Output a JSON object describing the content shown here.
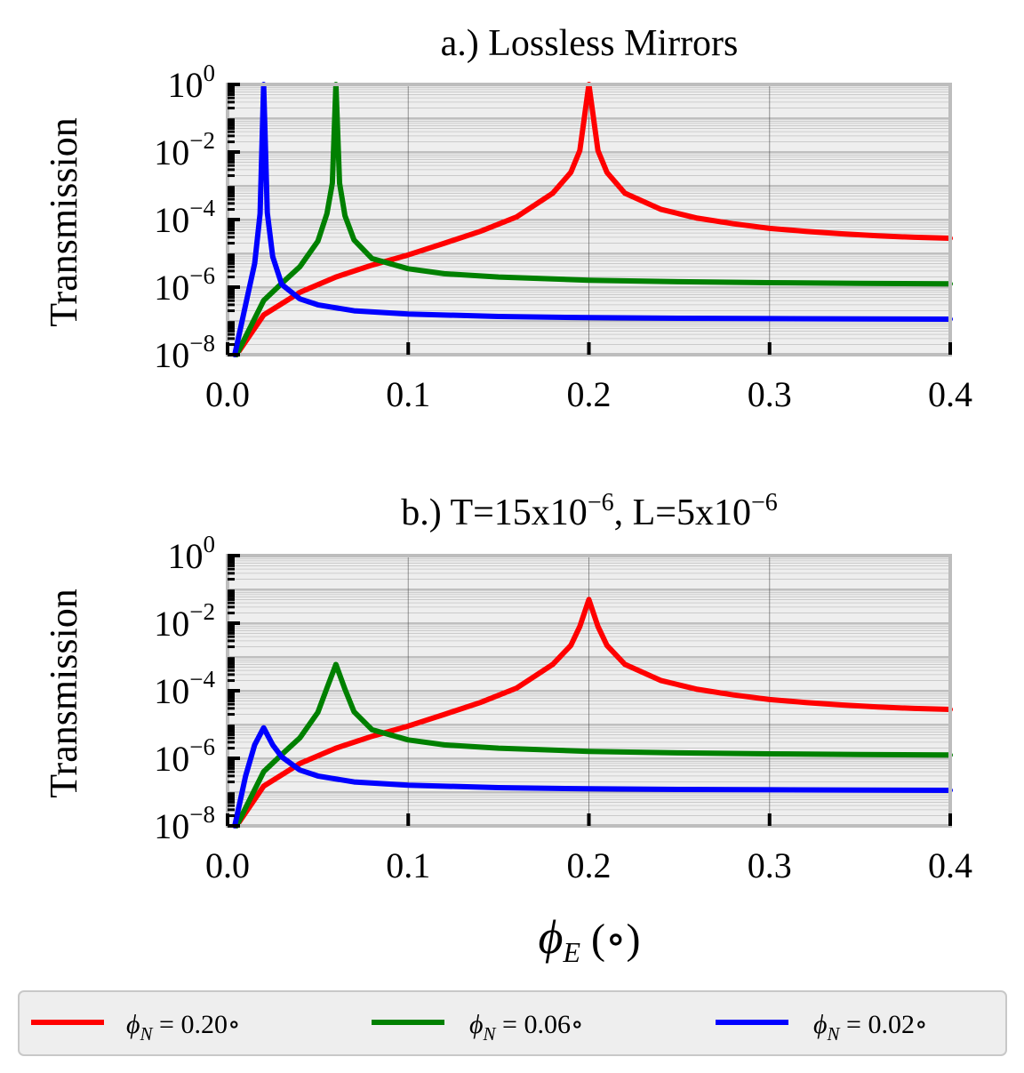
{
  "chart_data": [
    {
      "type": "line",
      "title": "a.) Lossless Mirrors",
      "ylabel": "Transmission",
      "xlabel": "",
      "xlim": [
        0.0,
        0.4
      ],
      "ylim": [
        1e-08,
        1
      ],
      "yscale": "log",
      "xticks": [
        "0.0",
        "0.1",
        "0.2",
        "0.3",
        "0.4"
      ],
      "yticks": [
        {
          "base": "10",
          "exp": "0"
        },
        {
          "base": "10",
          "exp": "−2"
        },
        {
          "base": "10",
          "exp": "−4"
        },
        {
          "base": "10",
          "exp": "−6"
        },
        {
          "base": "10",
          "exp": "−8"
        }
      ],
      "grid": true,
      "series": [
        {
          "name": "ϕN = 0.20°",
          "color": "#ff0000",
          "x": [
            0.005,
            0.02,
            0.04,
            0.06,
            0.08,
            0.1,
            0.12,
            0.14,
            0.16,
            0.18,
            0.19,
            0.195,
            0.2,
            0.205,
            0.21,
            0.22,
            0.24,
            0.26,
            0.28,
            0.3,
            0.32,
            0.34,
            0.36,
            0.38,
            0.4
          ],
          "y": [
            1e-08,
            1.5e-07,
            7e-07,
            2e-06,
            4.5e-06,
            9e-06,
            2e-05,
            4.5e-05,
            0.00012,
            0.0006,
            0.0025,
            0.011,
            1.0,
            0.011,
            0.0025,
            0.0006,
            0.0002,
            0.00011,
            7.5e-05,
            5.5e-05,
            4.5e-05,
            3.8e-05,
            3.3e-05,
            3e-05,
            2.8e-05
          ]
        },
        {
          "name": "ϕN = 0.06°",
          "color": "#008000",
          "x": [
            0.005,
            0.02,
            0.03,
            0.04,
            0.05,
            0.055,
            0.058,
            0.06,
            0.062,
            0.065,
            0.07,
            0.08,
            0.1,
            0.12,
            0.15,
            0.2,
            0.25,
            0.3,
            0.35,
            0.4
          ],
          "y": [
            1e-08,
            4e-07,
            1.3e-06,
            4e-06,
            2.3e-05,
            0.00015,
            0.0012,
            1.0,
            0.0012,
            0.00013,
            2.5e-05,
            7e-06,
            3.5e-06,
            2.5e-06,
            2e-06,
            1.6e-06,
            1.45e-06,
            1.35e-06,
            1.3e-06,
            1.25e-06
          ]
        },
        {
          "name": "ϕN = 0.02°",
          "color": "#0000ff",
          "x": [
            0.004,
            0.01,
            0.015,
            0.018,
            0.02,
            0.022,
            0.025,
            0.03,
            0.04,
            0.05,
            0.07,
            0.1,
            0.15,
            0.2,
            0.25,
            0.3,
            0.35,
            0.4
          ],
          "y": [
            1e-08,
            3e-07,
            5e-06,
            0.00015,
            1.0,
            0.00016,
            8e-06,
            1.2e-06,
            4.5e-07,
            3e-07,
            2e-07,
            1.6e-07,
            1.35e-07,
            1.25e-07,
            1.2e-07,
            1.17e-07,
            1.15e-07,
            1.13e-07
          ]
        }
      ]
    },
    {
      "type": "line",
      "title": "b.) T=15x10−6, L=5x10−6",
      "title_parts": [
        "b.) T=15x10",
        "−6",
        ", L=5x10",
        "−6"
      ],
      "ylabel": "Transmission",
      "xlabel": "ϕE (∘)",
      "xlim": [
        0.0,
        0.4
      ],
      "ylim": [
        1e-08,
        1
      ],
      "yscale": "log",
      "xticks": [
        "0.0",
        "0.1",
        "0.2",
        "0.3",
        "0.4"
      ],
      "yticks": [
        {
          "base": "10",
          "exp": "0"
        },
        {
          "base": "10",
          "exp": "−2"
        },
        {
          "base": "10",
          "exp": "−4"
        },
        {
          "base": "10",
          "exp": "−6"
        },
        {
          "base": "10",
          "exp": "−8"
        }
      ],
      "grid": true,
      "series": [
        {
          "name": "ϕN = 0.20°",
          "color": "#ff0000",
          "x": [
            0.005,
            0.02,
            0.04,
            0.06,
            0.08,
            0.1,
            0.12,
            0.14,
            0.16,
            0.18,
            0.19,
            0.195,
            0.2,
            0.205,
            0.21,
            0.22,
            0.24,
            0.26,
            0.28,
            0.3,
            0.32,
            0.34,
            0.36,
            0.38,
            0.4
          ],
          "y": [
            1e-08,
            1.5e-07,
            7e-07,
            2e-06,
            4.5e-06,
            9e-06,
            2e-05,
            4.5e-05,
            0.00012,
            0.0006,
            0.0022,
            0.008,
            0.05,
            0.008,
            0.0022,
            0.0006,
            0.0002,
            0.00011,
            7.5e-05,
            5.5e-05,
            4.5e-05,
            3.8e-05,
            3.3e-05,
            3e-05,
            2.8e-05
          ]
        },
        {
          "name": "ϕN = 0.06°",
          "color": "#008000",
          "x": [
            0.005,
            0.02,
            0.03,
            0.04,
            0.05,
            0.055,
            0.06,
            0.065,
            0.07,
            0.08,
            0.1,
            0.12,
            0.15,
            0.2,
            0.25,
            0.3,
            0.35,
            0.4
          ],
          "y": [
            1e-08,
            4e-07,
            1.3e-06,
            4e-06,
            2.3e-05,
            0.00012,
            0.0006,
            0.00011,
            2.4e-05,
            7e-06,
            3.5e-06,
            2.5e-06,
            2e-06,
            1.6e-06,
            1.45e-06,
            1.35e-06,
            1.3e-06,
            1.25e-06
          ]
        },
        {
          "name": "ϕN = 0.02°",
          "color": "#0000ff",
          "x": [
            0.004,
            0.01,
            0.015,
            0.02,
            0.025,
            0.03,
            0.04,
            0.05,
            0.07,
            0.1,
            0.15,
            0.2,
            0.25,
            0.3,
            0.35,
            0.4
          ],
          "y": [
            1e-08,
            3e-07,
            2.5e-06,
            8e-06,
            2.5e-06,
            1.1e-06,
            4.5e-07,
            3e-07,
            2e-07,
            1.6e-07,
            1.35e-07,
            1.25e-07,
            1.2e-07,
            1.17e-07,
            1.15e-07,
            1.13e-07
          ]
        }
      ]
    }
  ],
  "legend": {
    "placement": "bottom",
    "items": [
      {
        "symbol": "ϕ",
        "sub": "N",
        "text": " = 0.20∘",
        "color": "#ff0000"
      },
      {
        "symbol": "ϕ",
        "sub": "N",
        "text": " = 0.06∘",
        "color": "#008000"
      },
      {
        "symbol": "ϕ",
        "sub": "N",
        "text": " = 0.02∘",
        "color": "#0000ff"
      }
    ]
  },
  "xlabel_parts": {
    "symbol": "ϕ",
    "sub": "E",
    "unit": " (∘)"
  }
}
